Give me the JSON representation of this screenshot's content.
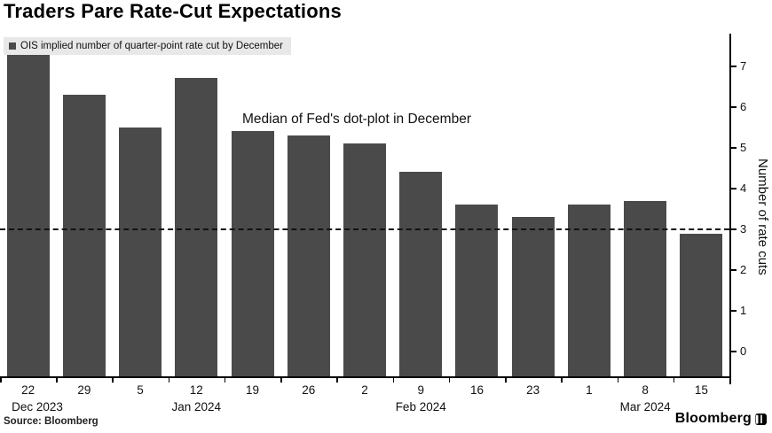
{
  "title": "Traders Pare Rate-Cut Expectations",
  "legend": {
    "label": "OIS implied number of quarter-point rate cut by December",
    "marker_color": "#4a4a4a"
  },
  "annotation": "Median of Fed's dot-plot in December",
  "source": "Source: Bloomberg",
  "brand": "Bloomberg",
  "chart_data": {
    "type": "bar",
    "title": "Traders Pare Rate-Cut Expectations",
    "legend": [
      "OIS implied number of quarter-point rate cut by December"
    ],
    "legend_position": "top-left",
    "categories": [
      "22",
      "29",
      "5",
      "12",
      "19",
      "26",
      "2",
      "9",
      "16",
      "23",
      "1",
      "8",
      "15"
    ],
    "values": [
      7.7,
      6.3,
      5.5,
      6.7,
      5.4,
      5.3,
      5.1,
      4.4,
      3.6,
      3.3,
      3.6,
      3.7,
      2.9
    ],
    "month_labels": [
      {
        "index": 0,
        "label": "Dec 2023"
      },
      {
        "index": 3,
        "label": "Jan 2024"
      },
      {
        "index": 7,
        "label": "Feb 2024"
      },
      {
        "index": 11,
        "label": "Mar 2024"
      }
    ],
    "xlabel": "",
    "ylabel": "Number of rate cuts",
    "yticks": [
      0,
      1,
      2,
      3,
      4,
      5,
      6,
      7
    ],
    "ylim": [
      -0.6,
      7.75
    ],
    "y_axis_side": "right",
    "grid": false,
    "bar_color": "#4a4a4a",
    "reference_line": {
      "value": 3,
      "style": "dashed",
      "color": "#111111",
      "label": "Median of Fed's dot-plot in December"
    }
  }
}
